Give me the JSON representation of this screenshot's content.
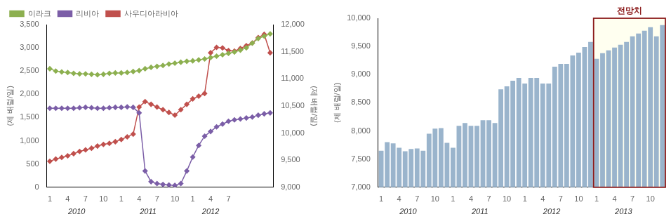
{
  "chart_data": [
    {
      "type": "line",
      "categories": [
        "1",
        null,
        null,
        "4",
        null,
        null,
        "7",
        null,
        null,
        "10",
        null,
        null,
        "1",
        null,
        null,
        "4",
        null,
        null,
        "7",
        null,
        null,
        "10",
        null,
        null,
        "1",
        null,
        null,
        "4",
        null,
        null,
        "7",
        null,
        null,
        null,
        null,
        null,
        null,
        null
      ],
      "series": [
        {
          "name": "이라크",
          "color": "#8db050",
          "marker": "diamond",
          "values": [
            2550,
            2500,
            2480,
            2470,
            2450,
            2440,
            2440,
            2430,
            2420,
            2430,
            2450,
            2460,
            2460,
            2470,
            2490,
            2510,
            2550,
            2580,
            2600,
            2620,
            2650,
            2670,
            2690,
            2710,
            2720,
            2740,
            2760,
            2790,
            2820,
            2850,
            2880,
            2910,
            2950,
            3000,
            3100,
            3200,
            3250,
            3300
          ]
        },
        {
          "name": "리비아",
          "color": "#7b5ea7",
          "marker": "diamond",
          "values": [
            1700,
            1700,
            1700,
            1700,
            1700,
            1710,
            1720,
            1710,
            1700,
            1700,
            1710,
            1720,
            1720,
            1730,
            1720,
            1600,
            350,
            120,
            80,
            60,
            50,
            40,
            80,
            350,
            650,
            900,
            1100,
            1200,
            1300,
            1360,
            1420,
            1450,
            1470,
            1490,
            1510,
            1550,
            1580,
            1600
          ]
        },
        {
          "name": "사우디아라비아",
          "color": "#c0504d",
          "marker": "diamond",
          "axis": "y2",
          "values": [
            9480,
            9520,
            9550,
            9580,
            9620,
            9660,
            9690,
            9720,
            9760,
            9790,
            9810,
            9840,
            9880,
            9930,
            9980,
            10480,
            10580,
            10530,
            10480,
            10430,
            10380,
            10330,
            10430,
            10530,
            10630,
            10680,
            10730,
            11480,
            11580,
            11570,
            11520,
            11510,
            11560,
            11610,
            11660,
            11760,
            11820,
            11480
          ]
        }
      ],
      "ylabel": "(제 배럴/일)",
      "y2label": "(제 배럴/일)",
      "ylim": [
        0,
        3500
      ],
      "yticks": [
        0,
        500,
        {
          "value": 1000,
          "label": "1,000"
        },
        {
          "value": 1500,
          "label": "1,500"
        },
        {
          "value": 2000,
          "label": "2,000"
        },
        {
          "value": 2500,
          "label": "2,500"
        },
        {
          "value": 3000,
          "label": "3,000"
        },
        {
          "value": 3500,
          "label": "3,500"
        }
      ],
      "y2lim": [
        9000,
        12000
      ],
      "y2ticks": [
        {
          "value": 9000,
          "label": "9,000"
        },
        {
          "value": 9500,
          "label": "9,500"
        },
        {
          "value": 10000,
          "label": "10,000"
        },
        {
          "value": 10500,
          "label": "10,500"
        },
        {
          "value": 11000,
          "label": "11,000"
        },
        {
          "value": 11500,
          "label": "11,500"
        },
        {
          "value": 12000,
          "label": "12,000"
        }
      ],
      "legend": "upper left",
      "grid": false,
      "annotations": [
        {
          "text": "2010",
          "x": 4.5
        },
        {
          "text": "2011",
          "x": 16.5
        },
        {
          "text": "2012",
          "x": 27.0
        }
      ]
    },
    {
      "type": "bar",
      "categories": [
        "1",
        null,
        null,
        "4",
        null,
        null,
        "7",
        null,
        null,
        "10",
        null,
        null,
        "1",
        null,
        null,
        "4",
        null,
        null,
        "7",
        null,
        null,
        "10",
        null,
        null,
        "1",
        null,
        null,
        "4",
        null,
        null,
        "7",
        null,
        null,
        "10",
        null,
        null,
        "1",
        null,
        null,
        "4",
        null,
        null,
        "7",
        null,
        null,
        "10",
        null,
        null
      ],
      "values": [
        7650,
        7800,
        7780,
        7700,
        7640,
        7680,
        7690,
        7650,
        7950,
        8040,
        8050,
        7790,
        7700,
        8090,
        8140,
        8090,
        8090,
        8190,
        8190,
        8140,
        8740,
        8790,
        8890,
        8940,
        8840,
        8940,
        8940,
        8840,
        8840,
        9140,
        9190,
        9190,
        9340,
        9390,
        9490,
        9580,
        9280,
        9380,
        9430,
        9480,
        9530,
        9580,
        9680,
        9730,
        9780,
        9840,
        9680,
        9880
      ],
      "color": "#9ab4cc",
      "ylabel": "(제 배럴/일)",
      "ylim": [
        7000,
        10000
      ],
      "yticks": [
        {
          "value": 7000,
          "label": "7,000"
        },
        {
          "value": 7500,
          "label": "7,500"
        },
        {
          "value": 8000,
          "label": "8,000"
        },
        {
          "value": 8500,
          "label": "8,500"
        },
        {
          "value": 9000,
          "label": "9,000"
        },
        {
          "value": 9500,
          "label": "9,500"
        },
        {
          "value": 10000,
          "label": "10,000"
        }
      ],
      "grid": false,
      "annotations": [
        {
          "text": "2010",
          "x": 4.5
        },
        {
          "text": "2011",
          "x": 16.5
        },
        {
          "text": "2012",
          "x": 28.5
        },
        {
          "text": "2013",
          "x": 40.5
        },
        {
          "text": "전망치",
          "start": 36,
          "color": "#8b1a1a",
          "background": "#fffff0"
        }
      ]
    }
  ]
}
